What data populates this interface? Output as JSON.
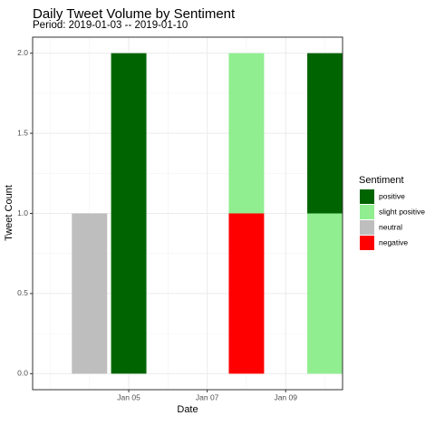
{
  "chart_data": {
    "type": "bar",
    "stacked": true,
    "title": "Daily Tweet Volume by Sentiment",
    "subtitle": "Period: 2019-01-03 -- 2019-01-10",
    "xlabel": "Date",
    "ylabel": "Tweet Count",
    "x_type": "date",
    "xlim": [
      "2019-01-03",
      "2019-01-10"
    ],
    "ylim": [
      0,
      2
    ],
    "grid": true,
    "legend_position": "right",
    "x_ticks": [
      {
        "date": "2019-01-05",
        "label": "Jan 05"
      },
      {
        "date": "2019-01-07",
        "label": "Jan 07"
      },
      {
        "date": "2019-01-09",
        "label": "Jan 09"
      }
    ],
    "y_ticks": [
      {
        "value": 0,
        "label": "0.0"
      },
      {
        "value": 0.5,
        "label": "0.5"
      },
      {
        "value": 1,
        "label": "1.0"
      },
      {
        "value": 1.5,
        "label": "1.5"
      },
      {
        "value": 2,
        "label": "2.0"
      }
    ],
    "legend": {
      "title": "Sentiment",
      "items": [
        {
          "label": "positive",
          "color": "#006400"
        },
        {
          "label": "slight positive",
          "color": "#90EE90"
        },
        {
          "label": "neutral",
          "color": "#BEBEBE"
        },
        {
          "label": "negative",
          "color": "#FF0000"
        }
      ]
    },
    "dates": [
      "2019-01-04",
      "2019-01-05",
      "2019-01-08",
      "2019-01-10"
    ],
    "series": [
      {
        "name": "negative",
        "color": "#FF0000",
        "values": [
          0,
          0,
          1,
          0
        ]
      },
      {
        "name": "neutral",
        "color": "#BEBEBE",
        "values": [
          1,
          0,
          0,
          0
        ]
      },
      {
        "name": "slight positive",
        "color": "#90EE90",
        "values": [
          0,
          0,
          1,
          1
        ]
      },
      {
        "name": "positive",
        "color": "#006400",
        "values": [
          0,
          2,
          0,
          1
        ]
      }
    ]
  }
}
